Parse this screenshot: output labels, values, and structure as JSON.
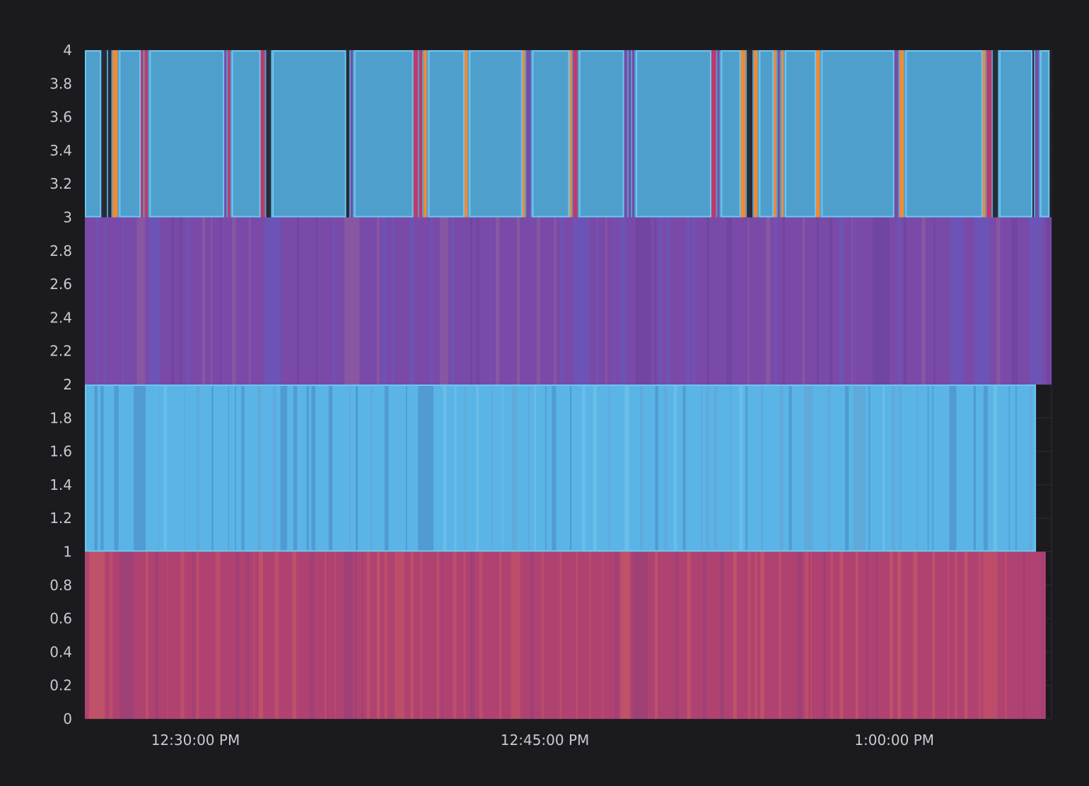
{
  "chart_data": {
    "type": "heatmap",
    "title": "",
    "xlabel": "",
    "ylabel": "",
    "ylim": [
      0,
      4
    ],
    "y_ticks": [
      "0",
      "0.2",
      "0.4",
      "0.6",
      "0.8",
      "1",
      "1.2",
      "1.4",
      "1.6",
      "1.8",
      "2",
      "2.2",
      "2.4",
      "2.6",
      "2.8",
      "3",
      "3.2",
      "3.4",
      "3.6",
      "3.8",
      "4"
    ],
    "x_time_range": [
      "12:25:15 PM",
      "1:06:45 PM"
    ],
    "x_ticks": [
      {
        "time": "12:30:00 PM",
        "label": "12:30:00 PM"
      },
      {
        "time": "12:45:00 PM",
        "label": "12:45:00 PM"
      },
      {
        "time": "1:00:00 PM",
        "label": "1:00:00 PM"
      }
    ],
    "grid": true,
    "legend": "none",
    "colors": {
      "background": "#1b1b1f",
      "grid": "#2c2c32",
      "band_0_1": "#b04272",
      "band_0_1_alt": "#c04f68",
      "band_1_2": "#5ab5e6",
      "band_1_2_alt": "#62a8d8",
      "band_2_3": "#7a4aa8",
      "band_2_3_alt": "#6a56b8",
      "band_3_4": "#4f9fcc",
      "band_3_4_border": "#6cc7f2",
      "accent_orange": "#f08a35",
      "accent_red": "#c0396b",
      "accent_purple": "#7a4aa8"
    },
    "series": [
      {
        "y_range": [
          3,
          4
        ],
        "ends_at": "1:06:40 PM"
      },
      {
        "y_range": [
          2,
          3
        ],
        "ends_at": "1:06:45 PM"
      },
      {
        "y_range": [
          1,
          2
        ],
        "ends_at": "1:06:05 PM"
      },
      {
        "y_range": [
          0,
          1
        ],
        "ends_at": "1:06:30 PM"
      }
    ]
  }
}
